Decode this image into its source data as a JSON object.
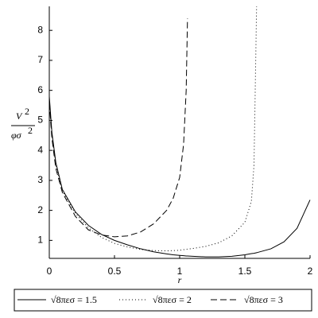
{
  "chart_data": {
    "type": "line",
    "y_label": {
      "numerator": [
        "V",
        "2"
      ],
      "denominator": [
        "φσ",
        "2"
      ]
    },
    "x_label": "r",
    "x": [
      0,
      0.02,
      0.05,
      0.1,
      0.2,
      0.3,
      0.4,
      0.5,
      0.6,
      0.7,
      0.8,
      0.9,
      0.95,
      1.0,
      1.03,
      1.05,
      1.06,
      1.1,
      1.2,
      1.3,
      1.4,
      1.5,
      1.55,
      1.57,
      1.59,
      1.6,
      1.7,
      1.8,
      1.9,
      2.0
    ],
    "series": [
      {
        "name": "√8πεσ = 1.5",
        "color": "#000000",
        "dash": "none",
        "values": [
          5.8,
          4.6,
          3.6,
          2.7,
          1.95,
          1.5,
          1.2,
          1.0,
          0.85,
          0.72,
          0.62,
          0.55,
          0.52,
          0.5,
          0.49,
          0.48,
          0.48,
          0.47,
          0.45,
          0.45,
          0.47,
          0.52,
          0.56,
          0.57,
          0.59,
          0.6,
          0.72,
          0.95,
          1.4,
          2.35
        ]
      },
      {
        "name": "√8πεσ = 2",
        "color": "#000000",
        "dash": "1,3",
        "values": [
          5.7,
          4.5,
          3.5,
          2.65,
          1.9,
          1.42,
          1.1,
          0.9,
          0.78,
          0.7,
          0.66,
          0.65,
          0.66,
          0.67,
          0.69,
          0.7,
          0.71,
          0.73,
          0.8,
          0.92,
          1.15,
          1.6,
          2.3,
          3.5,
          8.8,
          null,
          null,
          null,
          null,
          null
        ]
      },
      {
        "name": "√8πεσ = 3",
        "color": "#000000",
        "dash": "8,4",
        "values": [
          5.6,
          4.4,
          3.4,
          2.6,
          1.8,
          1.35,
          1.18,
          1.12,
          1.15,
          1.28,
          1.55,
          2.0,
          2.4,
          3.1,
          4.2,
          6.0,
          8.4,
          null,
          null,
          null,
          null,
          null,
          null,
          null,
          null,
          null,
          null,
          null,
          null,
          null
        ]
      }
    ],
    "xlim": [
      0,
      2
    ],
    "ylim": [
      0.4,
      8.8
    ],
    "xticks": [
      0,
      0.5,
      1,
      1.5,
      2
    ],
    "yticks": [
      1,
      2,
      3,
      4,
      5,
      6,
      7,
      8
    ]
  }
}
